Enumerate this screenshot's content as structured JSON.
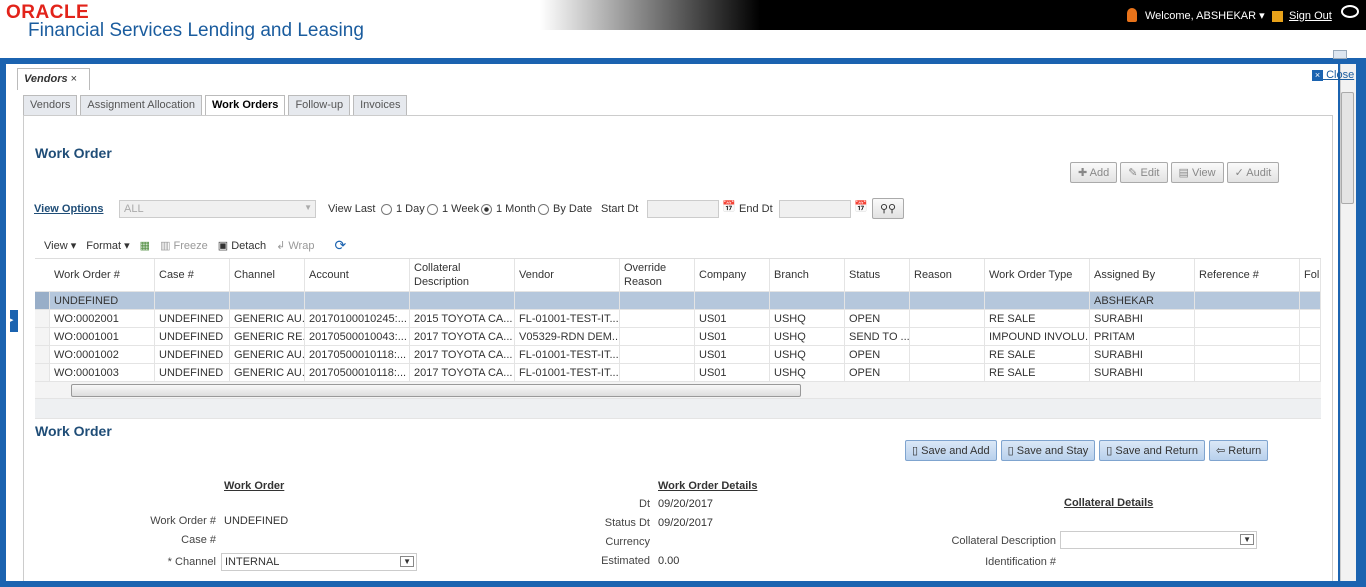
{
  "header": {
    "logo": "ORACLE",
    "product": "Financial Services Lending and Leasing",
    "welcome": "Welcome, ABSHEKAR ▾",
    "sign_out": "Sign Out"
  },
  "doc_tab": "Vendors",
  "close_label": "Close",
  "tabs": [
    {
      "label": "Vendors"
    },
    {
      "label": "Assignment Allocation"
    },
    {
      "label": "Work Orders",
      "active": true
    },
    {
      "label": "Follow-up"
    },
    {
      "label": "Invoices"
    }
  ],
  "section_title": "Work Order",
  "actions": {
    "add": "Add",
    "edit": "Edit",
    "view": "View",
    "audit": "Audit"
  },
  "filters": {
    "view_options": "View Options",
    "view_options_value": "ALL",
    "view_last": "View Last",
    "day": "1 Day",
    "week": "1 Week",
    "month": "1 Month",
    "by_date": "By Date",
    "selected": "1 Month",
    "start_dt": "Start Dt",
    "end_dt": "End Dt"
  },
  "toolbar": {
    "view": "View ▾",
    "format": "Format ▾",
    "freeze": "Freeze",
    "detach": "Detach",
    "wrap": "Wrap"
  },
  "table": {
    "columns": [
      "Work Order #",
      "Case #",
      "Channel",
      "Account",
      "Collateral Description",
      "Vendor",
      "Override Reason",
      "Company",
      "Branch",
      "Status",
      "Reason",
      "Work Order Type",
      "Assigned By",
      "Reference #",
      "Foll"
    ],
    "rows": [
      [
        "UNDEFINED",
        "",
        "",
        "",
        "",
        "",
        "",
        "",
        "",
        "",
        "",
        "",
        "ABSHEKAR",
        "",
        ""
      ],
      [
        "WO:0002001",
        "UNDEFINED",
        "GENERIC AU...",
        "20170100010245:...",
        "2015 TOYOTA CA...",
        "FL-01001-TEST-IT...",
        "",
        "US01",
        "USHQ",
        "OPEN",
        "",
        "RE SALE",
        "SURABHI",
        "",
        ""
      ],
      [
        "WO:0001001",
        "UNDEFINED",
        "GENERIC RE...",
        "20170500010043:...",
        "2017 TOYOTA CA...",
        "V05329-RDN DEM...",
        "",
        "US01",
        "USHQ",
        "SEND TO ...",
        "",
        "IMPOUND INVOLU...",
        "PRITAM",
        "",
        ""
      ],
      [
        "WO:0001002",
        "UNDEFINED",
        "GENERIC AU...",
        "20170500010118:...",
        "2017 TOYOTA CA...",
        "FL-01001-TEST-IT...",
        "",
        "US01",
        "USHQ",
        "OPEN",
        "",
        "RE SALE",
        "SURABHI",
        "",
        ""
      ],
      [
        "WO:0001003",
        "UNDEFINED",
        "GENERIC AU...",
        "20170500010118:...",
        "2017 TOYOTA CA...",
        "FL-01001-TEST-IT...",
        "",
        "US01",
        "USHQ",
        "OPEN",
        "",
        "RE SALE",
        "SURABHI",
        "",
        ""
      ]
    ]
  },
  "form": {
    "title": "Work Order",
    "save_add": "Save and Add",
    "save_stay": "Save and Stay",
    "save_return": "Save and Return",
    "return": "Return",
    "wo_heading": "Work Order",
    "wo_label": "Work Order #",
    "wo_value": "UNDEFINED",
    "case_label": "Case #",
    "channel_label": "* Channel",
    "channel_value": "INTERNAL",
    "details_heading": "Work Order Details",
    "dt_label": "Dt",
    "dt_value": "09/20/2017",
    "status_dt_label": "Status Dt",
    "status_dt_value": "09/20/2017",
    "currency_label": "Currency",
    "estimated_label": "Estimated",
    "estimated_value": "0.00",
    "collateral_heading": "Collateral Details",
    "coll_desc_label": "Collateral Description",
    "ident_label": "Identification #"
  },
  "colors": {
    "frame": "#1b63b0",
    "selected_row": "#b5c7dc",
    "title": "#1f4d77"
  }
}
